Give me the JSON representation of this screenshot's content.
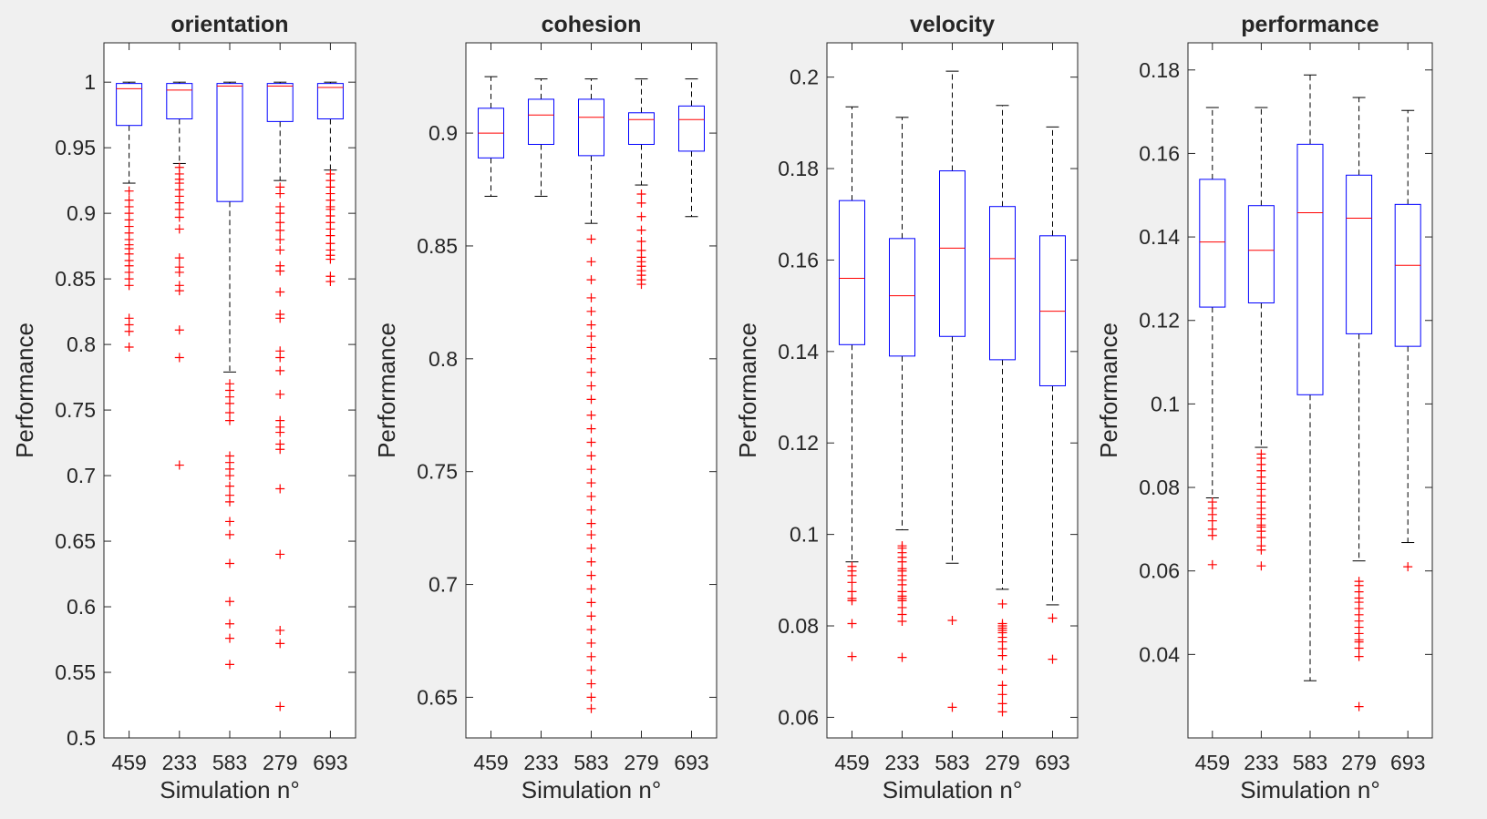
{
  "chart_data": [
    {
      "type": "box",
      "title": "orientation",
      "xlabel": "Simulation n°",
      "ylabel": "Performance",
      "ylim": [
        0.5,
        1.03
      ],
      "yticks": [
        "0.5",
        "0.55",
        "0.6",
        "0.65",
        "0.7",
        "0.75",
        "0.8",
        "0.85",
        "0.9",
        "0.95",
        "1"
      ],
      "categories": [
        "459",
        "233",
        "583",
        "279",
        "693"
      ],
      "boxes": [
        {
          "whisker_low": 0.923,
          "q1": 0.967,
          "median": 0.995,
          "q3": 0.999,
          "whisker_high": 1.0,
          "outliers": [
            0.917,
            0.91,
            0.905,
            0.9,
            0.895,
            0.89,
            0.885,
            0.88,
            0.876,
            0.873,
            0.869,
            0.864,
            0.86,
            0.855,
            0.85,
            0.845,
            0.82,
            0.815,
            0.81,
            0.798
          ]
        },
        {
          "whisker_low": 0.938,
          "q1": 0.972,
          "median": 0.994,
          "q3": 0.999,
          "whisker_high": 1.0,
          "outliers": [
            0.935,
            0.93,
            0.926,
            0.923,
            0.918,
            0.913,
            0.908,
            0.903,
            0.897,
            0.888,
            0.866,
            0.859,
            0.855,
            0.845,
            0.841,
            0.811,
            0.79,
            0.708
          ]
        },
        {
          "whisker_low": 0.779,
          "q1": 0.909,
          "median": 0.997,
          "q3": 0.999,
          "whisker_high": 1.0,
          "outliers": [
            0.77,
            0.765,
            0.76,
            0.755,
            0.748,
            0.742,
            0.715,
            0.71,
            0.705,
            0.7,
            0.692,
            0.685,
            0.68,
            0.665,
            0.655,
            0.633,
            0.604,
            0.587,
            0.576,
            0.556
          ]
        },
        {
          "whisker_low": 0.925,
          "q1": 0.97,
          "median": 0.997,
          "q3": 0.999,
          "whisker_high": 1.0,
          "outliers": [
            0.92,
            0.915,
            0.905,
            0.9,
            0.893,
            0.887,
            0.88,
            0.872,
            0.86,
            0.856,
            0.84,
            0.823,
            0.82,
            0.795,
            0.79,
            0.78,
            0.762,
            0.742,
            0.737,
            0.733,
            0.724,
            0.72,
            0.69,
            0.64,
            0.582,
            0.572,
            0.524
          ]
        },
        {
          "whisker_low": 0.933,
          "q1": 0.972,
          "median": 0.996,
          "q3": 0.999,
          "whisker_high": 1.0,
          "outliers": [
            0.93,
            0.925,
            0.92,
            0.915,
            0.91,
            0.905,
            0.903,
            0.898,
            0.893,
            0.888,
            0.883,
            0.877,
            0.872,
            0.868,
            0.865,
            0.852,
            0.848
          ]
        }
      ]
    },
    {
      "type": "box",
      "title": "cohesion",
      "xlabel": "Simulation n°",
      "ylabel": "Performance",
      "ylim": [
        0.632,
        0.94
      ],
      "yticks": [
        "0.65",
        "0.7",
        "0.75",
        "0.8",
        "0.85",
        "0.9"
      ],
      "categories": [
        "459",
        "233",
        "583",
        "279",
        "693"
      ],
      "boxes": [
        {
          "whisker_low": 0.872,
          "q1": 0.889,
          "median": 0.9,
          "q3": 0.911,
          "whisker_high": 0.925,
          "outliers": []
        },
        {
          "whisker_low": 0.872,
          "q1": 0.895,
          "median": 0.908,
          "q3": 0.915,
          "whisker_high": 0.924,
          "outliers": []
        },
        {
          "whisker_low": 0.86,
          "q1": 0.89,
          "median": 0.907,
          "q3": 0.915,
          "whisker_high": 0.924,
          "outliers": [
            0.853,
            0.843,
            0.835,
            0.827,
            0.821,
            0.815,
            0.81,
            0.805,
            0.8,
            0.794,
            0.788,
            0.782,
            0.775,
            0.769,
            0.763,
            0.757,
            0.751,
            0.745,
            0.739,
            0.733,
            0.727,
            0.722,
            0.716,
            0.71,
            0.704,
            0.698,
            0.692,
            0.686,
            0.68,
            0.674,
            0.668,
            0.662,
            0.656,
            0.65,
            0.645
          ]
        },
        {
          "whisker_low": 0.877,
          "q1": 0.895,
          "median": 0.906,
          "q3": 0.909,
          "whisker_high": 0.924,
          "outliers": [
            0.873,
            0.869,
            0.863,
            0.857,
            0.852,
            0.848,
            0.845,
            0.843,
            0.841,
            0.839,
            0.837,
            0.835,
            0.833
          ]
        },
        {
          "whisker_low": 0.863,
          "q1": 0.892,
          "median": 0.906,
          "q3": 0.912,
          "whisker_high": 0.924,
          "outliers": []
        }
      ]
    },
    {
      "type": "box",
      "title": "velocity",
      "xlabel": "Simulation n°",
      "ylabel": "Performance",
      "ylim": [
        0.0555,
        0.2075
      ],
      "yticks": [
        "0.06",
        "0.08",
        "0.1",
        "0.12",
        "0.14",
        "0.16",
        "0.18",
        "0.2"
      ],
      "categories": [
        "459",
        "233",
        "583",
        "279",
        "693"
      ],
      "boxes": [
        {
          "whisker_low": 0.094,
          "q1": 0.1415,
          "median": 0.156,
          "q3": 0.173,
          "whisker_high": 0.1935,
          "outliers": [
            0.093,
            0.092,
            0.091,
            0.0895,
            0.0875,
            0.086,
            0.0855,
            0.0805,
            0.0733
          ]
        },
        {
          "whisker_low": 0.101,
          "q1": 0.139,
          "median": 0.1522,
          "q3": 0.1647,
          "whisker_high": 0.1912,
          "outliers": [
            0.0975,
            0.097,
            0.096,
            0.095,
            0.094,
            0.0925,
            0.092,
            0.091,
            0.09,
            0.089,
            0.0875,
            0.0865,
            0.086,
            0.0855,
            0.084,
            0.0825,
            0.081,
            0.0731
          ]
        },
        {
          "whisker_low": 0.0937,
          "q1": 0.1433,
          "median": 0.1626,
          "q3": 0.1795,
          "whisker_high": 0.2013,
          "outliers": [
            0.0812,
            0.0622
          ]
        },
        {
          "whisker_low": 0.088,
          "q1": 0.1382,
          "median": 0.1603,
          "q3": 0.1717,
          "whisker_high": 0.1938,
          "outliers": [
            0.0848,
            0.0805,
            0.08,
            0.0795,
            0.079,
            0.0785,
            0.0775,
            0.0765,
            0.075,
            0.0735,
            0.0705,
            0.067,
            0.065,
            0.063,
            0.0612
          ]
        },
        {
          "whisker_low": 0.0846,
          "q1": 0.1325,
          "median": 0.1488,
          "q3": 0.1653,
          "whisker_high": 0.1891,
          "outliers": [
            0.0817,
            0.0727
          ]
        }
      ]
    },
    {
      "type": "box",
      "title": "performance",
      "xlabel": "Simulation n°",
      "ylabel": "Performance",
      "ylim": [
        0.02,
        0.1865
      ],
      "yticks": [
        "0.04",
        "0.06",
        "0.08",
        "0.1",
        "0.12",
        "0.14",
        "0.16",
        "0.18"
      ],
      "categories": [
        "459",
        "233",
        "583",
        "279",
        "693"
      ],
      "boxes": [
        {
          "whisker_low": 0.0775,
          "q1": 0.1232,
          "median": 0.1388,
          "q3": 0.1538,
          "whisker_high": 0.171,
          "outliers": [
            0.0765,
            0.075,
            0.0735,
            0.072,
            0.07,
            0.0685,
            0.0615
          ]
        },
        {
          "whisker_low": 0.0896,
          "q1": 0.1242,
          "median": 0.1368,
          "q3": 0.1475,
          "whisker_high": 0.171,
          "outliers": [
            0.088,
            0.087,
            0.0855,
            0.084,
            0.0825,
            0.081,
            0.0795,
            0.078,
            0.0765,
            0.075,
            0.0735,
            0.0725,
            0.071,
            0.0705,
            0.0695,
            0.068,
            0.066,
            0.065,
            0.0612
          ]
        },
        {
          "whisker_low": 0.0337,
          "q1": 0.1022,
          "median": 0.1458,
          "q3": 0.1622,
          "whisker_high": 0.1788,
          "outliers": []
        },
        {
          "whisker_low": 0.0624,
          "q1": 0.1168,
          "median": 0.1445,
          "q3": 0.1548,
          "whisker_high": 0.1734,
          "outliers": [
            0.0575,
            0.0565,
            0.055,
            0.0535,
            0.0525,
            0.051,
            0.0495,
            0.048,
            0.0465,
            0.045,
            0.0435,
            0.043,
            0.0415,
            0.0395,
            0.0275
          ]
        },
        {
          "whisker_low": 0.0668,
          "q1": 0.1138,
          "median": 0.1332,
          "q3": 0.1478,
          "whisker_high": 0.1703,
          "outliers": [
            0.061
          ]
        }
      ]
    }
  ],
  "colors": {
    "box": "#0000ff",
    "median": "#ff0000",
    "outlier": "#ff0000",
    "whisker": "#000000",
    "axis": "#262626",
    "background": "#f0f0f0",
    "axes_background": "#ffffff"
  }
}
